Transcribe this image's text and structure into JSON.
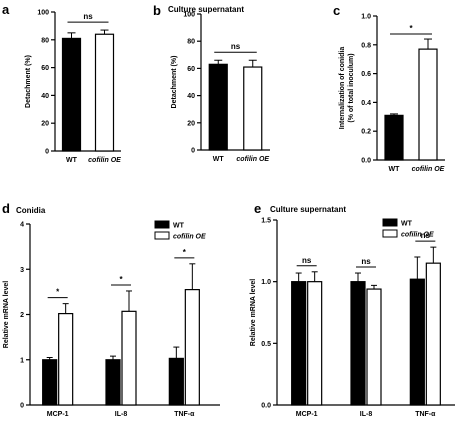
{
  "colors": {
    "wt": "#000000",
    "oe": "#ffffff",
    "stroke": "#000000"
  },
  "chart_data": [
    {
      "id": "a",
      "panel_label": "a",
      "type": "bar",
      "title": "",
      "ylabel": "Detachment (%)",
      "ylim": [
        0,
        100
      ],
      "yticks": [
        "0",
        "20",
        "40",
        "60",
        "80",
        "100"
      ],
      "categories": [
        "WT",
        "cofilin OE"
      ],
      "italic_categories": [
        false,
        true
      ],
      "values": [
        81,
        84
      ],
      "errors": [
        4,
        3
      ],
      "significance": [
        {
          "label": "ns",
          "between": [
            0,
            1
          ]
        }
      ]
    },
    {
      "id": "b",
      "panel_label": "b",
      "type": "bar",
      "title": "Culture supernatant",
      "ylabel": "Detachment (%)",
      "ylim": [
        0,
        100
      ],
      "yticks": [
        "0",
        "20",
        "40",
        "60",
        "80",
        "100"
      ],
      "categories": [
        "WT",
        "cofilin OE"
      ],
      "italic_categories": [
        false,
        true
      ],
      "values": [
        63,
        61
      ],
      "errors": [
        3,
        5
      ],
      "significance": [
        {
          "label": "ns",
          "between": [
            0,
            1
          ]
        }
      ]
    },
    {
      "id": "c",
      "panel_label": "c",
      "type": "bar",
      "title": "",
      "ylabel": "Internalization of conidia\n(% of total inoculum)",
      "ylim": [
        0,
        1.0
      ],
      "yticks": [
        "0.0",
        "0.2",
        "0.4",
        "0.6",
        "0.8",
        "1.0"
      ],
      "categories": [
        "WT",
        "cofilin OE"
      ],
      "italic_categories": [
        false,
        true
      ],
      "values": [
        0.31,
        0.77
      ],
      "errors": [
        0.01,
        0.07
      ],
      "significance": [
        {
          "label": "*",
          "between": [
            0,
            1
          ]
        }
      ]
    },
    {
      "id": "d",
      "panel_label": "d",
      "type": "bar",
      "title": "Conidia",
      "ylabel": "Relative mRNA level",
      "ylim": [
        0,
        4
      ],
      "yticks": [
        "0",
        "1",
        "2",
        "3",
        "4"
      ],
      "categories": [
        "MCP-1",
        "IL-8",
        "TNF-α"
      ],
      "series": [
        {
          "name": "WT",
          "values": [
            1.0,
            1.0,
            1.03
          ],
          "errors": [
            0.05,
            0.08,
            0.25
          ]
        },
        {
          "name": "cofilin OE",
          "values": [
            2.02,
            2.07,
            2.55
          ],
          "errors": [
            0.22,
            0.45,
            0.57
          ]
        }
      ],
      "legend": {
        "position": "top-right",
        "italic": [
          false,
          true
        ]
      },
      "significance": [
        {
          "label": "*",
          "category": 0
        },
        {
          "label": "*",
          "category": 1
        },
        {
          "label": "*",
          "category": 2
        }
      ]
    },
    {
      "id": "e",
      "panel_label": "e",
      "type": "bar",
      "title": "Culture supernatant",
      "ylabel": "Relative mRNA level",
      "ylim": [
        0,
        1.5
      ],
      "yticks": [
        "0.0",
        "0.5",
        "1.0",
        "1.5"
      ],
      "categories": [
        "MCP-1",
        "IL-8",
        "TNF-α"
      ],
      "series": [
        {
          "name": "WT",
          "values": [
            1.0,
            1.0,
            1.02
          ],
          "errors": [
            0.07,
            0.07,
            0.18
          ]
        },
        {
          "name": "cofilin OE",
          "values": [
            1.0,
            0.94,
            1.15
          ],
          "errors": [
            0.08,
            0.03,
            0.13
          ]
        }
      ],
      "legend": {
        "position": "top-right",
        "italic": [
          false,
          true
        ]
      },
      "significance": [
        {
          "label": "ns",
          "category": 0
        },
        {
          "label": "ns",
          "category": 1
        },
        {
          "label": "ns",
          "category": 2
        }
      ]
    }
  ]
}
